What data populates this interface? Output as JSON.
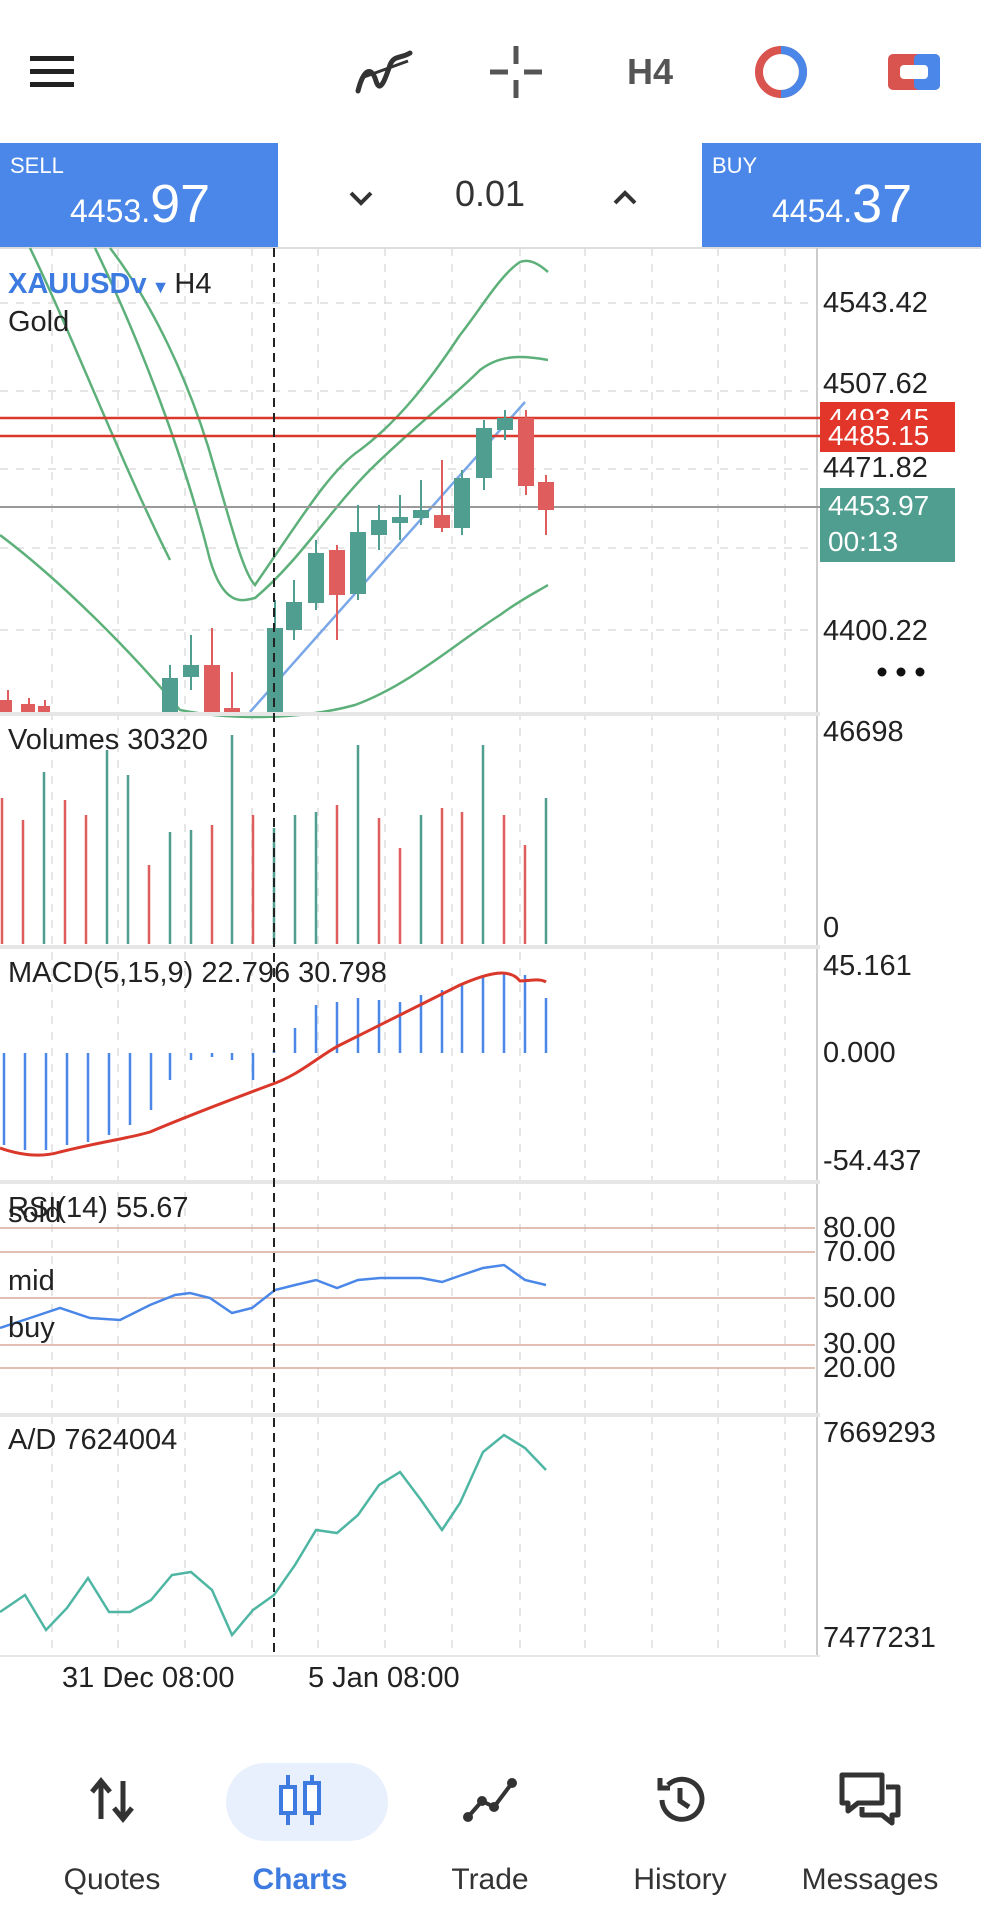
{
  "toolbar": {
    "menu_icon": "hamburger-menu-icon",
    "indicators_icon": "indicators-icon",
    "crosshair_icon": "crosshair-icon",
    "timeframe": "H4",
    "chart_type_icon": "chart-type-icon",
    "trade_toggle_icon": "one-click-trading-icon"
  },
  "tradebar": {
    "sell_label": "SELL",
    "sell_price_prefix": "4453.",
    "sell_price_big": "97",
    "lot": "0.01",
    "buy_label": "BUY",
    "buy_price_prefix": "4454.",
    "buy_price_big": "37"
  },
  "chart": {
    "symbol": "XAUUSDv",
    "timeframe": "H4",
    "description": "Gold",
    "price_axis": [
      "4543.42",
      "4507.62",
      "4471.82",
      "4400.22"
    ],
    "level1": "4493.45",
    "level2": "4485.15",
    "current_price": "4453.97",
    "countdown": "00:13",
    "more_icon": "more-dots-icon",
    "colors": {
      "bull": "#4f9e8f",
      "bear": "#e05d5d",
      "bands": "#5db07a",
      "level": "#d9382b",
      "trend": "#7aa7e8"
    }
  },
  "volumes": {
    "label": "Volumes 30320",
    "axis_top": "46698",
    "axis_bottom": "0"
  },
  "macd": {
    "label": "MACD(5,15,9) 22.796 30.798",
    "axis_top": "45.161",
    "axis_mid": "0.000",
    "axis_bottom": "-54.437"
  },
  "rsi": {
    "label": "RSI(14) 55.67",
    "levels": [
      "80.00",
      "70.00",
      "50.00",
      "30.00",
      "20.00"
    ],
    "zone_sold": "sold",
    "zone_mid": "mid",
    "zone_buy": "buy"
  },
  "ad": {
    "label": "A/D 7624004",
    "axis_top": "7669293",
    "axis_bottom": "7477231"
  },
  "time_axis": [
    "31 Dec 08:00",
    "5 Jan 08:00"
  ],
  "nav": [
    {
      "label": "Quotes",
      "icon": "quotes-arrows-icon"
    },
    {
      "label": "Charts",
      "icon": "charts-candles-icon"
    },
    {
      "label": "Trade",
      "icon": "trade-line-icon"
    },
    {
      "label": "History",
      "icon": "history-clock-icon"
    },
    {
      "label": "Messages",
      "icon": "messages-chat-icon"
    }
  ]
}
